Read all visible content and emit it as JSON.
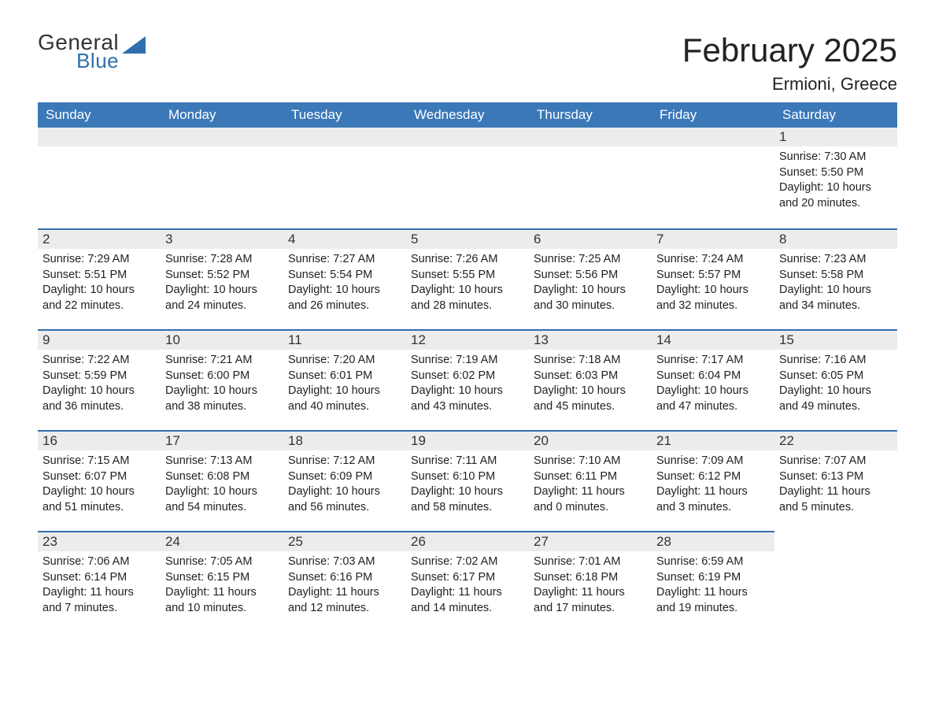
{
  "logo": {
    "top": "General",
    "bottom": "Blue"
  },
  "title": "February 2025",
  "location": "Ermioni, Greece",
  "colors": {
    "header_bg": "#3b78b8",
    "accent": "#2f6fb0",
    "daynum_bg": "#ececec",
    "text": "#222222",
    "page_bg": "#ffffff"
  },
  "calendar": {
    "type": "table",
    "columns": [
      "Sunday",
      "Monday",
      "Tuesday",
      "Wednesday",
      "Thursday",
      "Friday",
      "Saturday"
    ],
    "first_weekday_index": 6,
    "days": [
      {
        "n": 1,
        "sunrise": "7:30 AM",
        "sunset": "5:50 PM",
        "daylight": "10 hours and 20 minutes."
      },
      {
        "n": 2,
        "sunrise": "7:29 AM",
        "sunset": "5:51 PM",
        "daylight": "10 hours and 22 minutes."
      },
      {
        "n": 3,
        "sunrise": "7:28 AM",
        "sunset": "5:52 PM",
        "daylight": "10 hours and 24 minutes."
      },
      {
        "n": 4,
        "sunrise": "7:27 AM",
        "sunset": "5:54 PM",
        "daylight": "10 hours and 26 minutes."
      },
      {
        "n": 5,
        "sunrise": "7:26 AM",
        "sunset": "5:55 PM",
        "daylight": "10 hours and 28 minutes."
      },
      {
        "n": 6,
        "sunrise": "7:25 AM",
        "sunset": "5:56 PM",
        "daylight": "10 hours and 30 minutes."
      },
      {
        "n": 7,
        "sunrise": "7:24 AM",
        "sunset": "5:57 PM",
        "daylight": "10 hours and 32 minutes."
      },
      {
        "n": 8,
        "sunrise": "7:23 AM",
        "sunset": "5:58 PM",
        "daylight": "10 hours and 34 minutes."
      },
      {
        "n": 9,
        "sunrise": "7:22 AM",
        "sunset": "5:59 PM",
        "daylight": "10 hours and 36 minutes."
      },
      {
        "n": 10,
        "sunrise": "7:21 AM",
        "sunset": "6:00 PM",
        "daylight": "10 hours and 38 minutes."
      },
      {
        "n": 11,
        "sunrise": "7:20 AM",
        "sunset": "6:01 PM",
        "daylight": "10 hours and 40 minutes."
      },
      {
        "n": 12,
        "sunrise": "7:19 AM",
        "sunset": "6:02 PM",
        "daylight": "10 hours and 43 minutes."
      },
      {
        "n": 13,
        "sunrise": "7:18 AM",
        "sunset": "6:03 PM",
        "daylight": "10 hours and 45 minutes."
      },
      {
        "n": 14,
        "sunrise": "7:17 AM",
        "sunset": "6:04 PM",
        "daylight": "10 hours and 47 minutes."
      },
      {
        "n": 15,
        "sunrise": "7:16 AM",
        "sunset": "6:05 PM",
        "daylight": "10 hours and 49 minutes."
      },
      {
        "n": 16,
        "sunrise": "7:15 AM",
        "sunset": "6:07 PM",
        "daylight": "10 hours and 51 minutes."
      },
      {
        "n": 17,
        "sunrise": "7:13 AM",
        "sunset": "6:08 PM",
        "daylight": "10 hours and 54 minutes."
      },
      {
        "n": 18,
        "sunrise": "7:12 AM",
        "sunset": "6:09 PM",
        "daylight": "10 hours and 56 minutes."
      },
      {
        "n": 19,
        "sunrise": "7:11 AM",
        "sunset": "6:10 PM",
        "daylight": "10 hours and 58 minutes."
      },
      {
        "n": 20,
        "sunrise": "7:10 AM",
        "sunset": "6:11 PM",
        "daylight": "11 hours and 0 minutes."
      },
      {
        "n": 21,
        "sunrise": "7:09 AM",
        "sunset": "6:12 PM",
        "daylight": "11 hours and 3 minutes."
      },
      {
        "n": 22,
        "sunrise": "7:07 AM",
        "sunset": "6:13 PM",
        "daylight": "11 hours and 5 minutes."
      },
      {
        "n": 23,
        "sunrise": "7:06 AM",
        "sunset": "6:14 PM",
        "daylight": "11 hours and 7 minutes."
      },
      {
        "n": 24,
        "sunrise": "7:05 AM",
        "sunset": "6:15 PM",
        "daylight": "11 hours and 10 minutes."
      },
      {
        "n": 25,
        "sunrise": "7:03 AM",
        "sunset": "6:16 PM",
        "daylight": "11 hours and 12 minutes."
      },
      {
        "n": 26,
        "sunrise": "7:02 AM",
        "sunset": "6:17 PM",
        "daylight": "11 hours and 14 minutes."
      },
      {
        "n": 27,
        "sunrise": "7:01 AM",
        "sunset": "6:18 PM",
        "daylight": "11 hours and 17 minutes."
      },
      {
        "n": 28,
        "sunrise": "6:59 AM",
        "sunset": "6:19 PM",
        "daylight": "11 hours and 19 minutes."
      }
    ],
    "labels": {
      "sunrise": "Sunrise:",
      "sunset": "Sunset:",
      "daylight": "Daylight:"
    }
  }
}
